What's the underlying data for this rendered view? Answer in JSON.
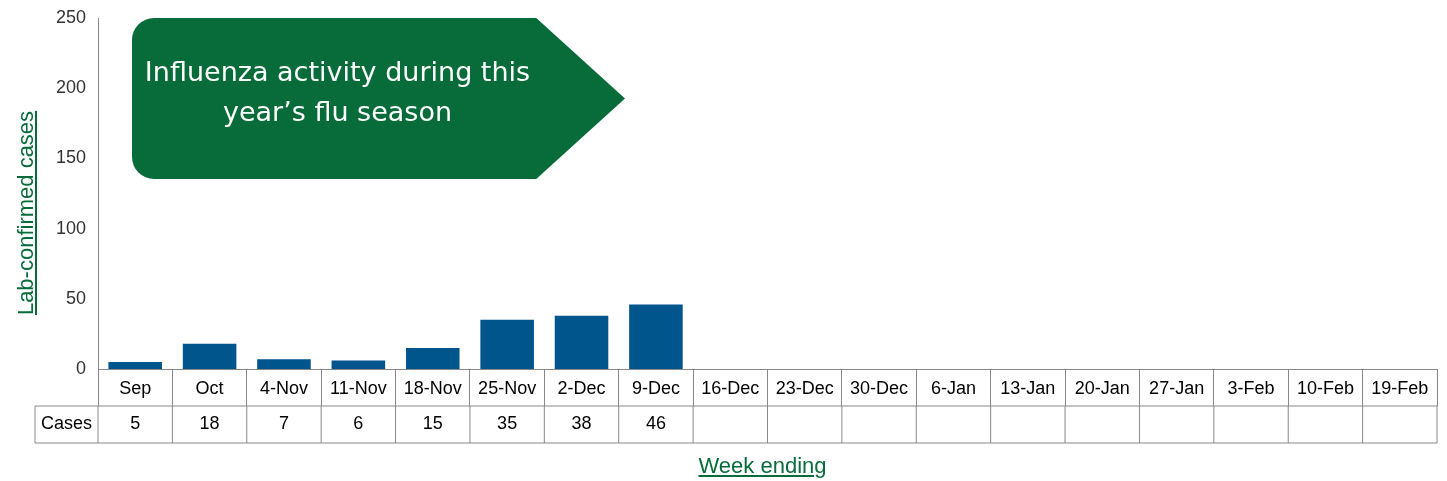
{
  "chart_data": {
    "type": "bar",
    "title": "Influenza activity during this year’s flu season",
    "xlabel": "Week ending",
    "ylabel": "Lab-confirmed cases",
    "categories": [
      "Sep",
      "Oct",
      "4-Nov",
      "11-Nov",
      "18-Nov",
      "25-Nov",
      "2-Dec",
      "9-Dec",
      "16-Dec",
      "23-Dec",
      "30-Dec",
      "6-Jan",
      "13-Jan",
      "20-Jan",
      "27-Jan",
      "3-Feb",
      "10-Feb",
      "19-Feb"
    ],
    "series": [
      {
        "name": "Cases",
        "color": "#00558c",
        "values": [
          5,
          18,
          7,
          6,
          15,
          35,
          38,
          46,
          null,
          null,
          null,
          null,
          null,
          null,
          null,
          null,
          null,
          null
        ]
      }
    ],
    "ylim": [
      0,
      250
    ],
    "yticks": [
      0,
      50,
      100,
      150,
      200,
      250
    ],
    "data_labels": true
  }
}
